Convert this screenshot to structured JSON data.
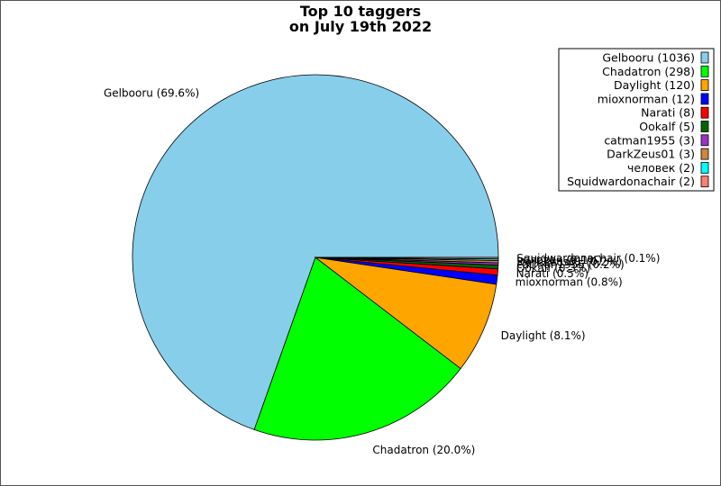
{
  "chart_data": {
    "type": "pie",
    "title_lines": [
      "Top 10 taggers",
      "on July 19th 2022"
    ],
    "legend_position": "top-right",
    "slices": [
      {
        "name": "Gelbooru",
        "value": 1036,
        "percent_label": "Gelbooru (69.6%)",
        "legend_label": "Gelbooru (1036)",
        "color": "#87ceeb"
      },
      {
        "name": "Chadatron",
        "value": 298,
        "percent_label": "Chadatron (20.0%)",
        "legend_label": "Chadatron (298)",
        "color": "#00ff00"
      },
      {
        "name": "Daylight",
        "value": 120,
        "percent_label": "Daylight (8.1%)",
        "legend_label": "Daylight (120)",
        "color": "#ffa500"
      },
      {
        "name": "mioxnorman",
        "value": 12,
        "percent_label": "mioxnorman (0.8%)",
        "legend_label": "mioxnorman (12)",
        "color": "#0000ff"
      },
      {
        "name": "Narati",
        "value": 8,
        "percent_label": "Narati (0.5%)",
        "legend_label": "Narati (8)",
        "color": "#ff0000"
      },
      {
        "name": "Ookalf",
        "value": 5,
        "percent_label": "Ookalf (0.3%)",
        "legend_label": "Ookalf (5)",
        "color": "#006400"
      },
      {
        "name": "catman1955",
        "value": 3,
        "percent_label": "catman1955 (0.2%)",
        "legend_label": "catman1955 (3)",
        "color": "#9932cc"
      },
      {
        "name": "DarkZeus01",
        "value": 3,
        "percent_label": "DarkZeus01 (0.2%)",
        "legend_label": "DarkZeus01 (3)",
        "color": "#cd853f"
      },
      {
        "name": "человек",
        "value": 2,
        "percent_label": "человек (0.1%)",
        "legend_label": "человек (2)",
        "color": "#00ffff"
      },
      {
        "name": "Squidwardonachair",
        "value": 2,
        "percent_label": "Squidwardonachair (0.1%)",
        "legend_label": "Squidwardonachair (2)",
        "color": "#fa8072"
      }
    ]
  }
}
